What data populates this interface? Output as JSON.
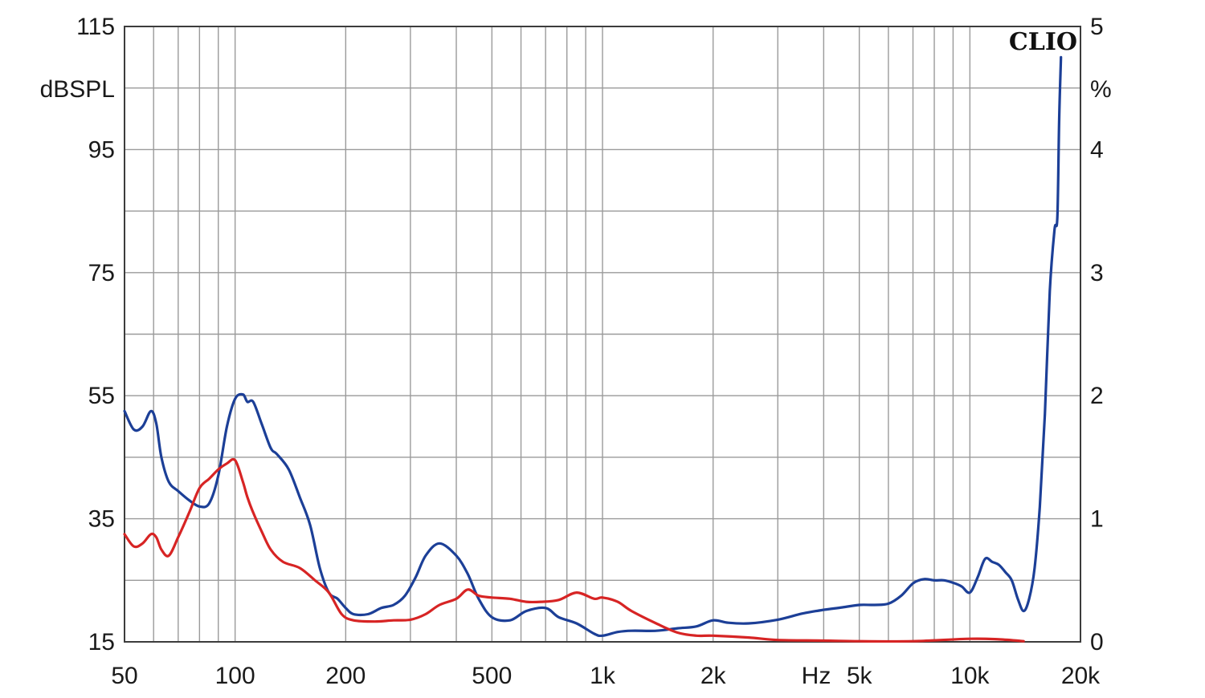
{
  "chart_data": {
    "type": "line",
    "brand": "CLIO",
    "y_left_unit": "dBSPL",
    "y_right_unit": "%",
    "x_unit": "Hz",
    "x_scale": "log",
    "xlim": [
      50,
      20000
    ],
    "ylim_left": [
      15,
      115
    ],
    "ylim_right": [
      0,
      5
    ],
    "x_ticks": [
      {
        "value": 50,
        "label": "50"
      },
      {
        "value": 100,
        "label": "100"
      },
      {
        "value": 200,
        "label": "200"
      },
      {
        "value": 500,
        "label": "500"
      },
      {
        "value": 1000,
        "label": "1k"
      },
      {
        "value": 2000,
        "label": "2k"
      },
      {
        "value": 5000,
        "label": "5k"
      },
      {
        "value": 10000,
        "label": "10k"
      },
      {
        "value": 20000,
        "label": "20k"
      }
    ],
    "y_left_ticks": [
      {
        "value": 115,
        "label": "115"
      },
      {
        "value": 95,
        "label": "95"
      },
      {
        "value": 75,
        "label": "75"
      },
      {
        "value": 55,
        "label": "55"
      },
      {
        "value": 35,
        "label": "35"
      },
      {
        "value": 15,
        "label": "15"
      }
    ],
    "y_right_ticks": [
      {
        "value": 5,
        "label": "5"
      },
      {
        "value": 4,
        "label": "4"
      },
      {
        "value": 3,
        "label": "3"
      },
      {
        "value": 2,
        "label": "2"
      },
      {
        "value": 1,
        "label": "1"
      },
      {
        "value": 0,
        "label": "0"
      }
    ],
    "grid": true,
    "series": [
      {
        "color": "#1c3f97",
        "x": [
          50,
          53,
          56,
          59,
          61,
          63,
          66,
          70,
          75,
          80,
          85,
          90,
          95,
          100,
          105,
          108,
          112,
          118,
          125,
          130,
          140,
          150,
          160,
          170,
          180,
          190,
          200,
          210,
          230,
          250,
          270,
          290,
          310,
          330,
          360,
          400,
          430,
          460,
          500,
          560,
          620,
          700,
          760,
          850,
          950,
          1000,
          1100,
          1200,
          1400,
          1600,
          1800,
          2000,
          2200,
          2500,
          3000,
          3500,
          4000,
          4500,
          5000,
          5500,
          6000,
          6500,
          7000,
          7500,
          8000,
          8500,
          9000,
          9500,
          10000,
          10500,
          11000,
          11500,
          12000,
          12500,
          13000,
          13500,
          14000,
          14500,
          15000,
          15500,
          16000,
          16500,
          17000,
          17300,
          17500,
          17700
        ],
        "y": [
          52.5,
          49.5,
          50,
          52.5,
          50.5,
          45,
          41,
          39.5,
          38,
          37,
          37.5,
          42,
          50,
          54.5,
          55.2,
          54,
          54,
          50.5,
          46.5,
          45.5,
          43,
          38.5,
          34,
          27,
          23,
          22,
          20.5,
          19.5,
          19.5,
          20.5,
          21,
          22.5,
          25.5,
          29,
          31,
          29,
          26,
          22,
          19,
          18.5,
          20,
          20.5,
          19,
          18,
          16.3,
          16,
          16.6,
          16.8,
          16.8,
          17.2,
          17.5,
          18.5,
          18.1,
          18,
          18.6,
          19.6,
          20.2,
          20.6,
          21,
          21,
          21.2,
          22.5,
          24.5,
          25.2,
          25,
          25,
          24.6,
          24,
          23,
          25.5,
          28.5,
          28,
          27.5,
          26.3,
          25,
          22,
          20,
          22,
          27,
          37,
          52,
          72,
          82,
          84,
          100,
          110
        ]
      },
      {
        "color": "#d72424",
        "x": [
          50,
          53,
          56,
          59,
          61,
          63,
          66,
          70,
          75,
          80,
          85,
          90,
          95,
          100,
          105,
          108,
          112,
          118,
          125,
          135,
          150,
          165,
          180,
          195,
          210,
          240,
          270,
          300,
          330,
          360,
          400,
          430,
          460,
          500,
          560,
          620,
          680,
          760,
          850,
          950,
          1000,
          1100,
          1200,
          1400,
          1600,
          1800,
          2000,
          2500,
          3000,
          4000,
          5000,
          7000,
          10000,
          12000,
          14000
        ],
        "y": [
          32.5,
          30.5,
          31,
          32.5,
          32,
          30,
          29,
          32,
          36,
          40,
          41.5,
          43,
          44,
          44.5,
          41,
          38.5,
          36,
          33,
          30,
          28,
          27,
          25,
          23,
          19.5,
          18.5,
          18.3,
          18.5,
          18.6,
          19.5,
          21,
          22,
          23.5,
          22.5,
          22.2,
          22,
          21.5,
          21.5,
          21.8,
          23,
          22,
          22.2,
          21.5,
          20,
          18,
          16.5,
          16,
          16,
          15.7,
          15.3,
          15.2,
          15.1,
          15.1,
          15.5,
          15.4,
          15.1
        ]
      }
    ]
  }
}
